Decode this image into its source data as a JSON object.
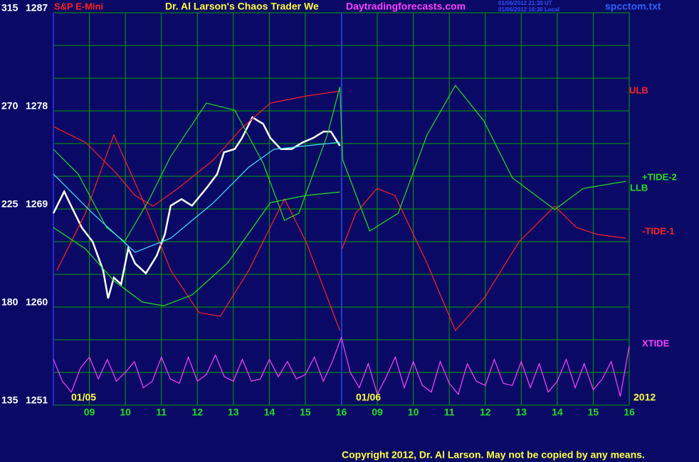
{
  "chart_data": {
    "type": "line",
    "title": "Dr. Al Larson's Chaos Trader We",
    "site": "Daytradingforecasts.com",
    "timestamps": [
      "01/06/2012 21:30 UT",
      "01/06/2012 16:30 Local"
    ],
    "file": "spcctom.txt",
    "day_labels": [
      "01/05",
      "01/06"
    ],
    "year": "2012",
    "copyright": "Copyright 2012, Dr. Al Larson. May not be copied by any means.",
    "xlim": [
      0,
      16
    ],
    "xticks": [
      {
        "value": 1,
        "label": "09"
      },
      {
        "value": 2,
        "label": "10"
      },
      {
        "value": 3,
        "label": "11"
      },
      {
        "value": 4,
        "label": "12"
      },
      {
        "value": 5,
        "label": "13"
      },
      {
        "value": 6,
        "label": "14"
      },
      {
        "value": 7,
        "label": "15"
      },
      {
        "value": 8,
        "label": "16"
      },
      {
        "value": 9,
        "label": "09"
      },
      {
        "value": 10,
        "label": "10"
      },
      {
        "value": 11,
        "label": "11"
      },
      {
        "value": 12,
        "label": "12"
      },
      {
        "value": 13,
        "label": "13"
      },
      {
        "value": 14,
        "label": "14"
      },
      {
        "value": 15,
        "label": "15"
      },
      {
        "value": 16,
        "label": "16"
      }
    ],
    "ylim": [
      135,
      315
    ],
    "yticks": [
      135,
      180,
      225,
      270,
      315
    ],
    "ygrid": [
      135,
      150,
      165,
      180,
      195,
      210,
      225,
      240,
      255,
      270,
      285,
      300,
      315
    ],
    "y2lim": [
      1251,
      1287
    ],
    "y2ticks": [
      1251,
      1260,
      1269,
      1278,
      1287
    ],
    "grid": true,
    "series": [
      {
        "name": "S&P E-Mini",
        "color": "#ffffff",
        "axis": "y2",
        "x": [
          0,
          0.3,
          0.49,
          0.79,
          1.09,
          1.38,
          1.52,
          1.68,
          1.88,
          2.08,
          2.27,
          2.57,
          2.87,
          3.1,
          3.26,
          3.56,
          3.85,
          4.25,
          4.55,
          4.74,
          5.04,
          5.24,
          5.53,
          5.83,
          6.03,
          6.32,
          6.62,
          6.92,
          7.21,
          7.51,
          7.71,
          7.96
        ],
        "values": [
          1268.6,
          1270.6,
          1269.3,
          1267.3,
          1266.0,
          1263.4,
          1260.8,
          1262.7,
          1262.1,
          1265.4,
          1264.0,
          1263.1,
          1264.7,
          1266.7,
          1269.3,
          1269.9,
          1269.3,
          1270.9,
          1272.2,
          1274.2,
          1274.5,
          1275.5,
          1277.4,
          1276.8,
          1275.5,
          1274.5,
          1274.5,
          1275.1,
          1275.5,
          1276.1,
          1276.1,
          1274.8
        ]
      },
      {
        "name": "ULB",
        "color": "#ff2020",
        "x": [
          0,
          0.89,
          1.68,
          2.27,
          2.77,
          3.46,
          4.45,
          5.24,
          6.03,
          7.02,
          7.96
        ],
        "values": [
          262.8,
          255.6,
          242.6,
          231.2,
          226.3,
          234.4,
          247.5,
          262.2,
          273.6,
          276.8,
          279.1
        ]
      },
      {
        "name": "-TIDE-1",
        "color": "#ff2020",
        "x": [
          0.1,
          0.89,
          1.68,
          2.47,
          3.26,
          4.05,
          4.64,
          5.43,
          6.42,
          7.02,
          7.96,
          7.97,
          8.02,
          8.4,
          8.99,
          9.49,
          10.38,
          11.17,
          11.96,
          12.94,
          13.93,
          14.53,
          15.12,
          15.91
        ],
        "values": [
          196.9,
          223.0,
          258.9,
          229.6,
          196.9,
          177.4,
          175.8,
          196.9,
          229.6,
          210.0,
          169.2,
          null,
          206.7,
          223.0,
          234.4,
          231.2,
          200.2,
          169.2,
          183.9,
          210.0,
          226.3,
          216.5,
          213.3,
          211.6
        ]
      },
      {
        "name": "+TIDE-2",
        "color": "#20e020",
        "x": [
          0,
          0.69,
          1.48,
          1.98,
          2.67,
          3.26,
          4.25,
          5.04,
          5.83,
          6.42,
          6.82,
          7.61,
          7.96,
          8.04,
          8.79,
          9.58,
          10.38,
          11.17,
          11.96,
          12.75,
          13.93,
          14.72,
          15.91
        ],
        "values": [
          252.4,
          241.0,
          216.5,
          210.0,
          229.6,
          249.1,
          273.6,
          270.3,
          245.9,
          219.8,
          223.0,
          258.9,
          281.1,
          247.5,
          214.9,
          223.0,
          258.9,
          281.7,
          265.4,
          239.3,
          224.7,
          234.4,
          237.7
        ]
      },
      {
        "name": "LLB",
        "color": "#20e020",
        "x": [
          0,
          0.89,
          1.68,
          2.47,
          3.06,
          3.85,
          4.84,
          6.03,
          7.02,
          7.96
        ],
        "values": [
          216.5,
          206.7,
          192.1,
          182.3,
          180.6,
          185.5,
          200.2,
          227.9,
          231.2,
          232.8
        ]
      },
      {
        "color": "#40e0ff",
        "x": [
          0,
          1.09,
          2.27,
          3.26,
          4.45,
          5.43,
          6.13,
          7.02,
          7.96
        ],
        "values": [
          241.0,
          223.0,
          205.1,
          211.6,
          227.9,
          244.2,
          252.4,
          254.0,
          255.6
        ]
      },
      {
        "name": "XTIDE",
        "color": "#ff40ff",
        "x": [
          0,
          0.25,
          0.5,
          0.75,
          1,
          1.25,
          1.5,
          1.75,
          2,
          2.25,
          2.5,
          2.75,
          3,
          3.25,
          3.5,
          3.75,
          4,
          4.25,
          4.5,
          4.75,
          5,
          5.25,
          5.5,
          5.75,
          6,
          6.25,
          6.5,
          6.75,
          7,
          7.25,
          7.5,
          7.75,
          8,
          8.25,
          8.5,
          8.75,
          9,
          9.25,
          9.5,
          9.75,
          10,
          10.25,
          10.5,
          10.75,
          11,
          11.25,
          11.5,
          11.75,
          12,
          12.25,
          12.5,
          12.75,
          13,
          13.25,
          13.5,
          13.75,
          14,
          14.25,
          14.5,
          14.75,
          15,
          15.25,
          15.5,
          15.75,
          16
        ],
        "values": [
          156,
          146,
          141,
          152,
          157,
          147,
          156,
          146,
          150,
          155,
          143,
          146,
          157,
          147,
          145,
          157,
          146,
          149,
          158,
          148,
          146,
          156,
          146,
          147,
          156,
          148,
          155,
          147,
          149,
          157,
          146,
          155,
          166,
          150,
          143,
          154,
          140,
          148,
          157,
          143,
          155,
          144,
          141,
          155,
          145,
          140,
          154,
          146,
          144,
          156,
          145,
          144,
          155,
          143,
          154,
          141,
          146,
          156,
          143,
          154,
          142,
          147,
          155,
          139,
          162
        ]
      }
    ]
  }
}
